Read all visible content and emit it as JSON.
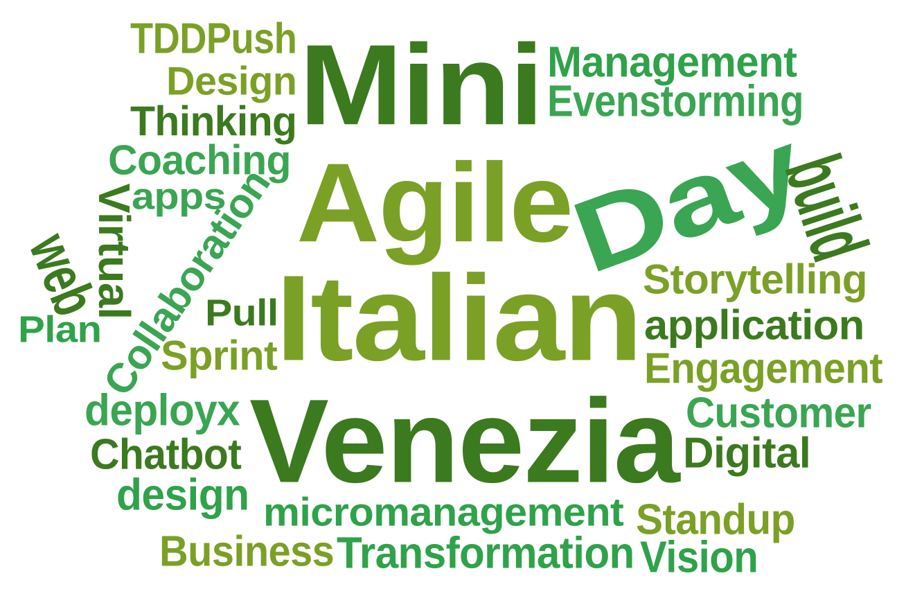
{
  "palette": {
    "dark": "#3b7a1e",
    "olive": "#7ba026",
    "light": "#2fa24a",
    "mid": "#2e8f36"
  },
  "words": [
    {
      "key": "mini",
      "text": "Mini",
      "color": "#3b7a1e"
    },
    {
      "key": "agile",
      "text": "Agile",
      "color": "#7ba026"
    },
    {
      "key": "day",
      "text": "Day",
      "color": "#3aa552"
    },
    {
      "key": "italian",
      "text": "Italian",
      "color": "#7ba026"
    },
    {
      "key": "venezia",
      "text": "Venezia",
      "color": "#3b7a1e"
    },
    {
      "key": "tddpush",
      "text": "TDDPush",
      "color": "#7ba026"
    },
    {
      "key": "design1",
      "text": "Design",
      "color": "#7ba026"
    },
    {
      "key": "thinking",
      "text": "Thinking",
      "color": "#3b7a1e"
    },
    {
      "key": "management",
      "text": "Management",
      "color": "#2fa24a"
    },
    {
      "key": "evenstorming",
      "text": "Evenstorming",
      "color": "#3aa552"
    },
    {
      "key": "coaching",
      "text": "Coaching",
      "color": "#3aa552"
    },
    {
      "key": "apps",
      "text": "apps",
      "color": "#3aa552"
    },
    {
      "key": "virtual",
      "text": "Virtual",
      "color": "#3b7a1e"
    },
    {
      "key": "collaboration",
      "text": "Collaboration",
      "color": "#3aa552"
    },
    {
      "key": "web",
      "text": "web",
      "color": "#3b7a1e"
    },
    {
      "key": "build",
      "text": "build",
      "color": "#3b7a1e"
    },
    {
      "key": "storytelling",
      "text": "Storytelling",
      "color": "#7ba026"
    },
    {
      "key": "application",
      "text": "application",
      "color": "#3b7a1e"
    },
    {
      "key": "engagement",
      "text": "Engagement",
      "color": "#7ba026"
    },
    {
      "key": "plan",
      "text": "Plan",
      "color": "#2fa24a"
    },
    {
      "key": "pull",
      "text": "Pull",
      "color": "#3b7a1e"
    },
    {
      "key": "sprint",
      "text": "Sprint",
      "color": "#7ba026"
    },
    {
      "key": "deployx",
      "text": "deployx",
      "color": "#3aa552"
    },
    {
      "key": "customer",
      "text": "Customer",
      "color": "#3aa552"
    },
    {
      "key": "chatbot",
      "text": "Chatbot",
      "color": "#3b7a1e"
    },
    {
      "key": "digital",
      "text": "Digital",
      "color": "#3b7a1e"
    },
    {
      "key": "design2",
      "text": "design",
      "color": "#2fa24a"
    },
    {
      "key": "micromanagement",
      "text": "micromanagement",
      "color": "#2fa24a"
    },
    {
      "key": "standup",
      "text": "Standup",
      "color": "#7ba026"
    },
    {
      "key": "business",
      "text": "Business",
      "color": "#7ba026"
    },
    {
      "key": "transformation",
      "text": "Transformation",
      "color": "#2fa24a"
    },
    {
      "key": "vision",
      "text": "Vision",
      "color": "#2fa24a"
    }
  ]
}
